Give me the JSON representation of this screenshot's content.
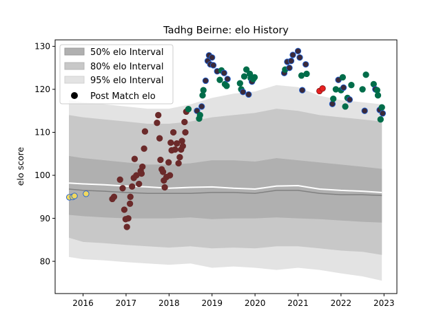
{
  "chart_data": {
    "type": "scatter",
    "title": "Tadhg Beirne: elo History",
    "xlabel": "",
    "ylabel": "elo score",
    "xlim": [
      2015.35,
      2023.3
    ],
    "ylim": [
      72.5,
      131.5
    ],
    "xticks": [
      2016,
      2017,
      2018,
      2019,
      2020,
      2021,
      2022,
      2023
    ],
    "yticks": [
      80,
      90,
      100,
      110,
      120,
      130
    ],
    "legend": {
      "position": "top-left",
      "entries": [
        "50% elo Interval",
        "80% elo Interval",
        "95% elo Interval",
        "Post Match elo"
      ]
    },
    "colors": {
      "band50": "#b0b0b0",
      "band80": "#c8c8c8",
      "band95": "#e3e3e3",
      "mean_line": "#ffffff",
      "median_line": "#808080",
      "point_fill_early": "#f0d860",
      "point_fill_mid": "#6b2a2a",
      "point_fill_late": "#006d4a",
      "point_fill_red": "#e82020",
      "point_edge_blue": "#1f5fd0",
      "point_edge_red": "#8b1a1a"
    },
    "bands": {
      "x": [
        2015.67,
        2016.0,
        2016.5,
        2017.0,
        2017.5,
        2018.0,
        2018.5,
        2019.0,
        2019.5,
        2020.0,
        2020.5,
        2021.0,
        2021.5,
        2022.0,
        2022.5,
        2022.95
      ],
      "p95_low": [
        81,
        80.5,
        80.2,
        79.8,
        79.5,
        79.2,
        79.5,
        78.5,
        78.8,
        78.5,
        78.0,
        78.5,
        78.0,
        77.2,
        76.5,
        75.5
      ],
      "p80_low": [
        85.5,
        84.5,
        84.2,
        83.8,
        83.5,
        83.2,
        83.5,
        83.0,
        83.2,
        83.0,
        83.5,
        83.5,
        83.0,
        82.5,
        82.2,
        81.5
      ],
      "p50_low": [
        90.8,
        90.5,
        90.2,
        90.0,
        90.0,
        90.0,
        90.2,
        89.8,
        90.0,
        90.0,
        90.2,
        90.0,
        89.8,
        89.5,
        89.2,
        89.0
      ],
      "p50_high": [
        104.5,
        104.0,
        103.5,
        103.0,
        102.5,
        102.5,
        102.8,
        103.5,
        103.5,
        103.2,
        104.0,
        103.5,
        103.0,
        102.5,
        102.0,
        101.5
      ],
      "p80_high": [
        114.0,
        113.5,
        113.0,
        112.5,
        112.0,
        112.0,
        112.5,
        113.5,
        114.0,
        114.5,
        115.5,
        115.0,
        114.0,
        113.5,
        113.0,
        112.5
      ],
      "p95_high": [
        117.5,
        117.0,
        116.5,
        116.0,
        115.5,
        115.5,
        116.5,
        118.0,
        119.0,
        119.5,
        121.0,
        120.5,
        118.5,
        117.5,
        117.0,
        116.5
      ],
      "mean": [
        98.2,
        98.0,
        97.8,
        97.5,
        97.3,
        97.0,
        97.2,
        97.3,
        97.0,
        96.8,
        97.5,
        97.6,
        96.8,
        96.5,
        96.3,
        96.0
      ],
      "median": [
        96.8,
        96.5,
        96.3,
        96.0,
        95.8,
        95.8,
        95.8,
        96.0,
        96.0,
        95.8,
        96.5,
        96.5,
        95.8,
        95.5,
        95.5,
        95.3
      ]
    },
    "series": [
      {
        "group": "early",
        "points": [
          [
            2015.68,
            94.9
          ],
          [
            2015.76,
            95.0
          ],
          [
            2015.8,
            95.2
          ],
          [
            2016.07,
            95.7
          ]
        ]
      },
      {
        "group": "mid",
        "points": [
          [
            2016.68,
            94.5
          ],
          [
            2016.72,
            95.0
          ],
          [
            2016.86,
            99.0
          ],
          [
            2016.92,
            97.0
          ],
          [
            2016.96,
            92.0
          ],
          [
            2016.99,
            89.8
          ],
          [
            2017.02,
            88.0
          ],
          [
            2017.05,
            90.0
          ],
          [
            2017.09,
            93.4
          ],
          [
            2017.1,
            95.0
          ],
          [
            2017.14,
            97.4
          ],
          [
            2017.18,
            99.4
          ],
          [
            2017.2,
            103.8
          ],
          [
            2017.24,
            100.0
          ],
          [
            2017.3,
            98.0
          ],
          [
            2017.34,
            101.0
          ],
          [
            2017.36,
            100.4
          ],
          [
            2017.38,
            102.0
          ],
          [
            2017.42,
            106.2
          ],
          [
            2017.44,
            110.2
          ],
          [
            2017.72,
            112.2
          ],
          [
            2017.75,
            114.0
          ],
          [
            2017.78,
            108.6
          ],
          [
            2017.8,
            103.6
          ],
          [
            2017.83,
            101.4
          ],
          [
            2017.86,
            100.8
          ],
          [
            2017.88,
            98.8
          ],
          [
            2017.9,
            97.2
          ],
          [
            2017.94,
            99.6
          ],
          [
            2017.99,
            103.0
          ],
          [
            2018.02,
            100.0
          ],
          [
            2018.04,
            107.6
          ],
          [
            2018.06,
            105.8
          ],
          [
            2018.1,
            110.0
          ],
          [
            2018.14,
            106.0
          ],
          [
            2018.18,
            107.4
          ],
          [
            2018.22,
            102.8
          ],
          [
            2018.25,
            104.2
          ],
          [
            2018.28,
            106.0
          ],
          [
            2018.3,
            108.0
          ],
          [
            2018.32,
            106.8
          ],
          [
            2018.36,
            112.4
          ],
          [
            2018.38,
            110.0
          ],
          [
            2018.4,
            114.8
          ]
        ]
      },
      {
        "group": "late",
        "points": [
          [
            2018.45,
            115.4
          ],
          [
            2018.65,
            115.0
          ],
          [
            2018.7,
            113.2
          ],
          [
            2018.72,
            114.0
          ],
          [
            2018.76,
            116.0
          ],
          [
            2018.78,
            118.6
          ],
          [
            2018.8,
            119.8
          ],
          [
            2018.85,
            122.0
          ],
          [
            2018.9,
            126.6
          ],
          [
            2018.93,
            127.9
          ],
          [
            2018.96,
            125.8
          ],
          [
            2019.0,
            127.4
          ],
          [
            2019.03,
            125.6
          ],
          [
            2019.12,
            124.2
          ],
          [
            2019.18,
            122.2
          ],
          [
            2019.22,
            124.4
          ],
          [
            2019.28,
            123.8
          ],
          [
            2019.3,
            121.2
          ],
          [
            2019.34,
            120.8
          ],
          [
            2019.36,
            122.4
          ],
          [
            2019.65,
            121.4
          ],
          [
            2019.68,
            120.0
          ],
          [
            2019.72,
            119.4
          ],
          [
            2019.75,
            123.0
          ],
          [
            2019.8,
            124.6
          ],
          [
            2019.85,
            118.8
          ],
          [
            2019.88,
            123.6
          ],
          [
            2019.9,
            122.6
          ],
          [
            2019.93,
            121.8
          ],
          [
            2019.96,
            122.4
          ],
          [
            2019.99,
            122.8
          ],
          [
            2020.68,
            123.8
          ],
          [
            2020.7,
            124.6
          ],
          [
            2020.75,
            126.4
          ],
          [
            2020.8,
            125.0
          ],
          [
            2020.84,
            126.6
          ],
          [
            2020.88,
            128.0
          ],
          [
            2021.0,
            128.9
          ],
          [
            2021.04,
            127.4
          ],
          [
            2021.08,
            123.2
          ],
          [
            2021.1,
            119.8
          ],
          [
            2021.18,
            125.8
          ],
          [
            2021.2,
            123.6
          ],
          [
            2021.8,
            116.6
          ],
          [
            2021.82,
            117.8
          ],
          [
            2021.88,
            120.0
          ],
          [
            2021.94,
            122.2
          ],
          [
            2022.0,
            119.8
          ],
          [
            2022.04,
            122.8
          ],
          [
            2022.06,
            120.4
          ],
          [
            2022.1,
            116.0
          ],
          [
            2022.15,
            118.0
          ],
          [
            2022.2,
            117.6
          ],
          [
            2022.24,
            121.0
          ],
          [
            2022.5,
            120.0
          ],
          [
            2022.55,
            115.0
          ],
          [
            2022.58,
            123.4
          ],
          [
            2022.76,
            121.2
          ],
          [
            2022.8,
            120.0
          ],
          [
            2022.84,
            119.8
          ],
          [
            2022.86,
            118.6
          ],
          [
            2022.9,
            115.2
          ],
          [
            2022.92,
            113.0
          ],
          [
            2022.95,
            115.8
          ],
          [
            2022.97,
            114.4
          ]
        ]
      },
      {
        "group": "red",
        "points": [
          [
            2021.5,
            119.6
          ],
          [
            2021.57,
            120.2
          ]
        ]
      }
    ]
  }
}
